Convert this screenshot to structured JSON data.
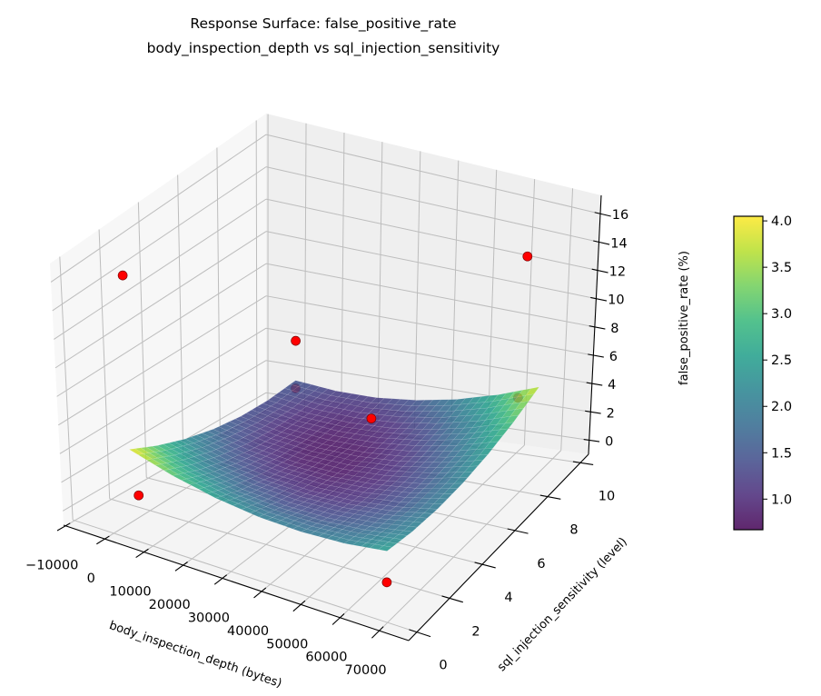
{
  "chart_data": {
    "type": "surface3d",
    "title": "Response Surface: false_positive_rate",
    "subtitle": "body_inspection_depth vs sql_injection_sensitivity",
    "xlabel": "body_inspection_depth (bytes)",
    "ylabel": "sql_injection_sensitivity (level)",
    "zlabel": "false_positive_rate (%)",
    "xlim": [
      -10500,
      77500
    ],
    "ylim": [
      -0.5,
      10.5
    ],
    "zlim": [
      -1,
      17.3
    ],
    "xticks": [
      -10000,
      0,
      10000,
      20000,
      30000,
      40000,
      50000,
      60000,
      70000
    ],
    "xtick_labels": [
      "−10000",
      "0",
      "10000",
      "20000",
      "30000",
      "40000",
      "50000",
      "60000",
      "70000"
    ],
    "yticks": [
      0,
      2,
      4,
      6,
      8,
      10
    ],
    "ytick_labels": [
      "0",
      "2",
      "4",
      "6",
      "8",
      "10"
    ],
    "zticks": [
      0,
      2,
      4,
      6,
      8,
      10,
      12,
      14,
      16
    ],
    "ztick_labels": [
      "0",
      "2",
      "4",
      "6",
      "8",
      "10",
      "12",
      "14",
      "16"
    ],
    "grid": true,
    "surface": {
      "colormap": "viridis",
      "alpha": 0.85,
      "x": [
        0,
        10923,
        21845,
        32768,
        43691,
        54613,
        65536
      ],
      "y": [
        1,
        2.5,
        4,
        5.5,
        7,
        8.5,
        10
      ],
      "z": [
        [
          4.0,
          3.11,
          2.48,
          2.1,
          1.98,
          2.11,
          2.5
        ],
        [
          3.03,
          2.24,
          1.72,
          1.44,
          1.43,
          1.67,
          2.16
        ],
        [
          2.28,
          1.6,
          1.18,
          1.01,
          1.1,
          1.44,
          2.04
        ],
        [
          1.75,
          1.18,
          0.86,
          0.8,
          1.0,
          1.44,
          2.15
        ],
        [
          1.44,
          0.98,
          0.77,
          0.81,
          1.11,
          1.67,
          2.48
        ],
        [
          1.36,
          1.0,
          0.89,
          1.04,
          1.45,
          2.11,
          3.03
        ],
        [
          1.5,
          1.25,
          1.24,
          1.5,
          2.01,
          2.78,
          3.8
        ]
      ]
    },
    "points": {
      "color": "#ff0000",
      "x": [
        0,
        2000,
        0,
        0,
        30000,
        65536,
        65536,
        60000
      ],
      "y": [
        1,
        1,
        10,
        10,
        8,
        1,
        9,
        10
      ],
      "z": [
        16,
        1,
        4,
        1.0,
        2,
        0.3,
        14,
        2.8
      ]
    },
    "colorbar": {
      "range": [
        0.67,
        4.05
      ],
      "ticks": [
        1.0,
        1.5,
        2.0,
        2.5,
        3.0,
        3.5,
        4.0
      ],
      "tick_labels": [
        "1.0",
        "1.5",
        "2.0",
        "2.5",
        "3.0",
        "3.5",
        "4.0"
      ]
    }
  }
}
